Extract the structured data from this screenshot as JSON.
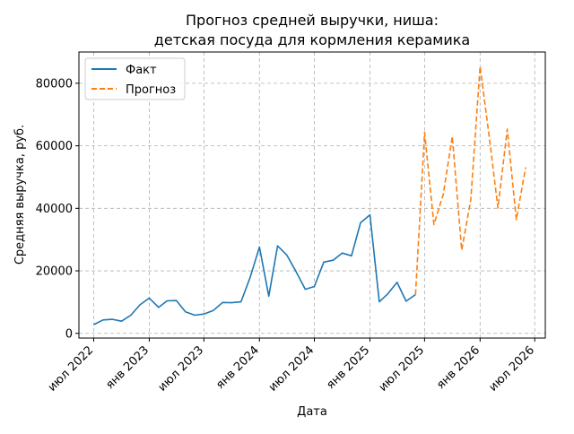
{
  "chart_data": {
    "type": "line",
    "title_lines": [
      "Прогноз средней выручки, ниша:",
      "детская посуда для кормления керамика"
    ],
    "xlabel": "Дата",
    "ylabel": "Средняя выручка, руб.",
    "ylim": [
      -1500,
      90000
    ],
    "xlim": [
      "2022-05-13",
      "2026-08-05"
    ],
    "yticks": [
      0,
      20000,
      40000,
      60000,
      80000
    ],
    "ytick_labels": [
      "0",
      "20000",
      "40000",
      "60000",
      "80000"
    ],
    "xticks": [
      "2022-07-01",
      "2023-01-01",
      "2023-07-01",
      "2024-01-01",
      "2024-07-01",
      "2025-01-01",
      "2025-07-01",
      "2026-01-01",
      "2026-07-01"
    ],
    "xtick_labels": [
      "июл 2022",
      "янв 2023",
      "июл 2023",
      "янв 2024",
      "июл 2024",
      "янв 2025",
      "июл 2025",
      "янв 2026",
      "июл 2026"
    ],
    "grid": true,
    "legend_position": "upper-left",
    "series": [
      {
        "name": "Факт",
        "color": "#1f77b4",
        "style": "solid",
        "x": [
          "2022-07-01",
          "2022-08-01",
          "2022-09-01",
          "2022-10-01",
          "2022-11-01",
          "2022-12-01",
          "2023-01-01",
          "2023-02-01",
          "2023-03-01",
          "2023-04-01",
          "2023-05-01",
          "2023-06-01",
          "2023-07-01",
          "2023-08-01",
          "2023-09-01",
          "2023-10-01",
          "2023-11-01",
          "2023-12-01",
          "2024-01-01",
          "2024-02-01",
          "2024-03-01",
          "2024-04-01",
          "2024-05-01",
          "2024-06-01",
          "2024-07-01",
          "2024-08-01",
          "2024-09-01",
          "2024-10-01",
          "2024-11-01",
          "2024-12-01",
          "2025-01-01",
          "2025-02-01",
          "2025-03-01",
          "2025-04-01",
          "2025-05-01",
          "2025-06-01"
        ],
        "y": [
          2800,
          4300,
          4500,
          3900,
          5800,
          9100,
          11300,
          8300,
          10400,
          10500,
          6900,
          5800,
          6200,
          7300,
          9900,
          9800,
          10100,
          17800,
          27600,
          11900,
          28000,
          25000,
          19800,
          14100,
          15000,
          22800,
          23400,
          25700,
          24800,
          35400,
          37900,
          10100,
          12600,
          16300,
          10300,
          12400
        ]
      },
      {
        "name": "Прогноз",
        "color": "#ff7f0e",
        "style": "dashed",
        "x": [
          "2025-06-01",
          "2025-07-01",
          "2025-08-01",
          "2025-09-01",
          "2025-10-01",
          "2025-11-01",
          "2025-12-01",
          "2026-01-01",
          "2026-02-01",
          "2026-03-01",
          "2026-04-01",
          "2026-05-01",
          "2026-06-01"
        ],
        "y": [
          12400,
          64300,
          34800,
          44400,
          63000,
          26600,
          42700,
          85400,
          62400,
          40100,
          65300,
          36400,
          53100
        ]
      }
    ]
  }
}
